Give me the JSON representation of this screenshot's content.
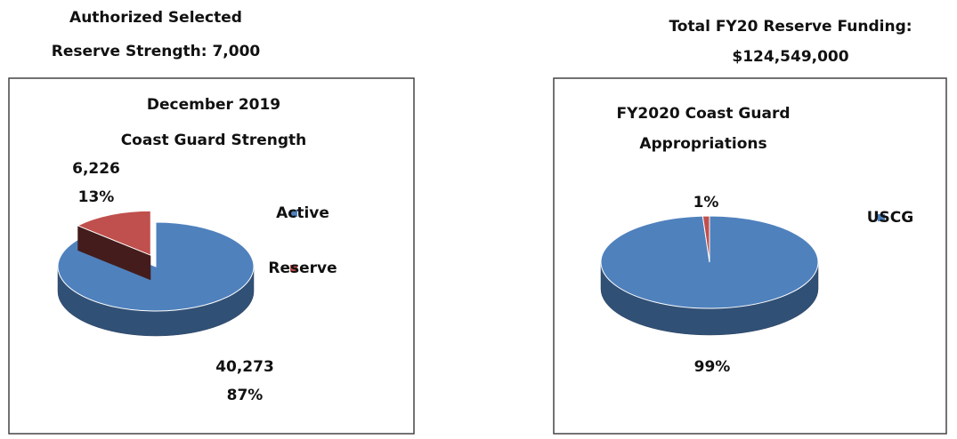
{
  "left_header": [
    "Authorized Selected",
    "Reserve Strength: 7,000"
  ],
  "right_header": [
    "Total FY20 Reserve Funding:",
    "$124,549,000"
  ],
  "chart_data": [
    {
      "type": "pie",
      "title": [
        "December 2019",
        "Coast Guard Strength"
      ],
      "categories": [
        "Active",
        "Reserve"
      ],
      "values": [
        40273,
        6226
      ],
      "value_labels": [
        "40,273",
        "6,226"
      ],
      "percents": [
        87,
        13
      ],
      "percent_labels": [
        "87%",
        "13%"
      ],
      "colors": [
        "#4f81bd",
        "#c0504d"
      ],
      "exploded": [
        false,
        true
      ],
      "legend": "right"
    },
    {
      "type": "pie",
      "title": [
        "FY2020 Coast Guard",
        "Appropriations"
      ],
      "categories": [
        "USCG",
        null
      ],
      "values": [
        99,
        1
      ],
      "value_labels": [
        "99%",
        "1%"
      ],
      "colors": [
        "#4f81bd",
        "#c0504d"
      ],
      "exploded": [
        false,
        false
      ],
      "legend": "right"
    }
  ]
}
